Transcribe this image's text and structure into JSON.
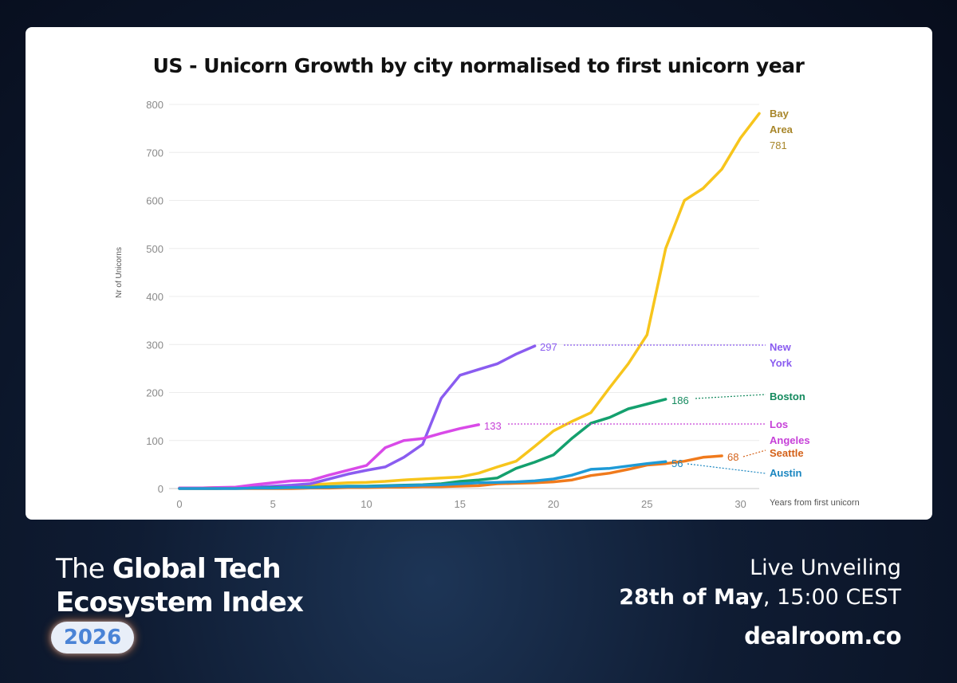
{
  "chart_data": {
    "type": "line",
    "title": "US - Unicorn Growth by city normalised to first unicorn year",
    "xlabel": "Years from first unicorn",
    "ylabel": "Nr of Unicorns",
    "xlim": [
      0,
      31
    ],
    "ylim": [
      0,
      800
    ],
    "xticks": [
      0,
      5,
      10,
      15,
      20,
      25,
      30
    ],
    "yticks": [
      0,
      100,
      200,
      300,
      400,
      500,
      600,
      700,
      800
    ],
    "grid": true,
    "legend": "end-of-line labels",
    "series": [
      {
        "name_lines": [
          "Bay",
          "Area"
        ],
        "value_label": "781",
        "color": "#f7c51c",
        "label_color": "#a8862a",
        "x": [
          0,
          1,
          2,
          3,
          4,
          5,
          6,
          7,
          8,
          9,
          10,
          11,
          12,
          13,
          14,
          15,
          16,
          17,
          18,
          19,
          20,
          21,
          22,
          23,
          24,
          25,
          26,
          27,
          28,
          29,
          30,
          31
        ],
        "y": [
          1,
          1,
          2,
          2,
          3,
          4,
          5,
          8,
          10,
          12,
          13,
          15,
          18,
          20,
          22,
          24,
          32,
          45,
          57,
          88,
          120,
          140,
          158,
          210,
          260,
          320,
          500,
          600,
          625,
          665,
          730,
          781
        ]
      },
      {
        "name_lines": [
          "New",
          "York"
        ],
        "value_label": "297",
        "color": "#8a5cf0",
        "label_color": "#8a5cf0",
        "x": [
          0,
          1,
          2,
          3,
          4,
          5,
          6,
          7,
          8,
          9,
          10,
          11,
          12,
          13,
          14,
          15,
          16,
          17,
          18,
          19
        ],
        "y": [
          1,
          1,
          1,
          2,
          3,
          5,
          7,
          10,
          20,
          30,
          38,
          45,
          65,
          92,
          188,
          236,
          248,
          260,
          280,
          297
        ]
      },
      {
        "name_lines": [
          "Boston"
        ],
        "value_label": "186",
        "color": "#14a06e",
        "label_color": "#148a5e",
        "x": [
          0,
          1,
          2,
          3,
          4,
          5,
          6,
          7,
          8,
          9,
          10,
          11,
          12,
          13,
          14,
          15,
          16,
          17,
          18,
          19,
          20,
          21,
          22,
          23,
          24,
          25,
          26
        ],
        "y": [
          0,
          0,
          0,
          1,
          1,
          2,
          2,
          3,
          4,
          5,
          5,
          6,
          7,
          8,
          10,
          15,
          18,
          22,
          42,
          55,
          70,
          105,
          136,
          148,
          166,
          176,
          186
        ]
      },
      {
        "name_lines": [
          "Los",
          "Angeles"
        ],
        "value_label": "133",
        "color": "#d94ae8",
        "label_color": "#c640d8",
        "x": [
          0,
          1,
          2,
          3,
          4,
          5,
          6,
          7,
          8,
          9,
          10,
          11,
          12,
          13,
          14,
          15,
          16
        ],
        "y": [
          1,
          1,
          2,
          3,
          8,
          12,
          16,
          17,
          28,
          38,
          48,
          85,
          100,
          104,
          115,
          125,
          133
        ]
      },
      {
        "name_lines": [
          "Seattle"
        ],
        "value_label": "68",
        "color": "#f07a1c",
        "label_color": "#d4621a",
        "x": [
          0,
          1,
          2,
          3,
          4,
          5,
          6,
          7,
          8,
          9,
          10,
          11,
          12,
          13,
          14,
          15,
          16,
          17,
          18,
          19,
          20,
          21,
          22,
          23,
          24,
          25,
          26,
          27,
          28,
          29
        ],
        "y": [
          0,
          0,
          0,
          0,
          0,
          0,
          0,
          1,
          1,
          2,
          2,
          3,
          3,
          4,
          4,
          5,
          6,
          10,
          11,
          12,
          14,
          18,
          27,
          32,
          40,
          49,
          52,
          57,
          65,
          68
        ]
      },
      {
        "name_lines": [
          "Austin"
        ],
        "value_label": "56",
        "color": "#1e9ad6",
        "label_color": "#1a86c0",
        "x": [
          0,
          1,
          2,
          3,
          4,
          5,
          6,
          7,
          8,
          9,
          10,
          11,
          12,
          13,
          14,
          15,
          16,
          17,
          18,
          19,
          20,
          21,
          22,
          23,
          24,
          25,
          26
        ],
        "y": [
          0,
          0,
          0,
          0,
          1,
          1,
          2,
          2,
          3,
          4,
          4,
          5,
          6,
          7,
          8,
          10,
          12,
          13,
          14,
          16,
          20,
          28,
          40,
          42,
          47,
          52,
          56
        ]
      }
    ]
  },
  "footer": {
    "title_line1_light": "The ",
    "title_line1_bold": "Global Tech",
    "title_line2_bold": "Ecosystem Index",
    "year": "2026",
    "live": "Live Unveiling",
    "date_bold": "28th of May",
    "date_rest": ", 15:00 CEST",
    "brand": "dealroom.co"
  }
}
